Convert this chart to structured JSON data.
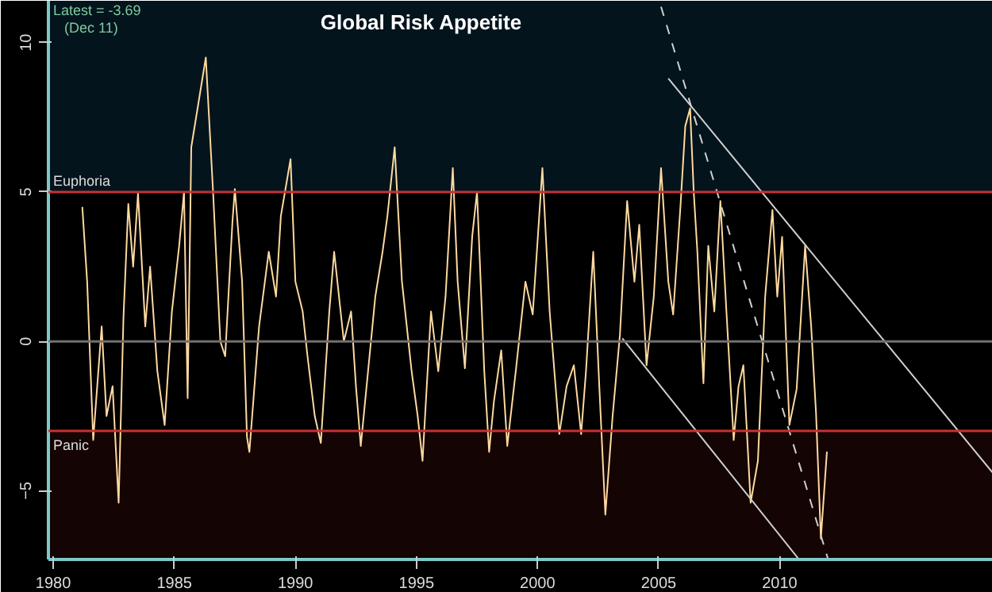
{
  "chart_data": {
    "type": "line",
    "title": "Global Risk Appetite",
    "annotations": [
      "Latest = -3.69",
      "(Dec 11)"
    ],
    "xlim": [
      1979.8,
      2018.8
    ],
    "xticks": [
      1980,
      1985,
      1990,
      1995,
      2000,
      2005,
      2010
    ],
    "ylim": [
      -7.3,
      11.4
    ],
    "yticks": [
      -5,
      0,
      5,
      10
    ],
    "grid": false,
    "line_style": "solid",
    "marker": "none",
    "ref_lines": [
      {
        "axis": "y",
        "value": 5,
        "label": "Euphoria",
        "color": "#c83232"
      },
      {
        "axis": "y",
        "value": -3,
        "label": "Panic",
        "color": "#c83232"
      },
      {
        "axis": "y",
        "value": 0,
        "label": null,
        "color": "#707070"
      }
    ],
    "bands": [
      {
        "axis": "y",
        "from": 5,
        "to": 11.4,
        "label": null,
        "color": "#04141c"
      },
      {
        "axis": "y",
        "from": -7.3,
        "to": -3,
        "label": null,
        "color": "#140404"
      }
    ],
    "series": [
      {
        "color": "#ffd9a0",
        "x": [
          1981.2,
          1981.4,
          1981.65,
          1982.0,
          1982.2,
          1982.45,
          1982.7,
          1982.9,
          1983.1,
          1983.3,
          1983.5,
          1983.8,
          1984.0,
          1984.3,
          1984.6,
          1984.9,
          1985.2,
          1985.4,
          1985.55,
          1985.7,
          1986.0,
          1986.3,
          1986.6,
          1986.9,
          1987.1,
          1987.4,
          1987.5,
          1987.8,
          1988.0,
          1988.1,
          1988.5,
          1988.9,
          1989.2,
          1989.4,
          1989.8,
          1990.0,
          1990.3,
          1990.5,
          1990.8,
          1991.05,
          1991.4,
          1991.6,
          1992.0,
          1992.3,
          1992.5,
          1992.7,
          1993.0,
          1993.3,
          1993.6,
          1993.8,
          1994.1,
          1994.4,
          1994.8,
          1995.05,
          1995.25,
          1995.6,
          1995.9,
          1996.2,
          1996.5,
          1996.7,
          1997.0,
          1997.3,
          1997.5,
          1997.8,
          1998.0,
          1998.2,
          1998.5,
          1998.75,
          1999.1,
          1999.5,
          1999.8,
          2000.2,
          2000.5,
          2000.9,
          2001.2,
          2001.5,
          2001.8,
          2002.0,
          2002.3,
          2002.55,
          2002.8,
          2003.1,
          2003.4,
          2003.7,
          2004.0,
          2004.2,
          2004.5,
          2004.8,
          2005.1,
          2005.4,
          2005.6,
          2005.9,
          2006.1,
          2006.3,
          2006.45,
          2006.6,
          2006.85,
          2007.05,
          2007.3,
          2007.55,
          2007.8,
          2008.1,
          2008.3,
          2008.5,
          2008.8,
          2009.1,
          2009.4,
          2009.7,
          2009.9,
          2010.1,
          2010.4,
          2010.7,
          2011.05,
          2011.3,
          2011.5,
          2011.7,
          2011.95
        ],
        "values": [
          4.5,
          2.0,
          -3.3,
          0.5,
          -2.5,
          -1.5,
          -5.4,
          0.8,
          4.6,
          2.5,
          4.95,
          0.5,
          2.5,
          -1.0,
          -2.8,
          1.0,
          3.2,
          5.0,
          -1.9,
          6.5,
          8.0,
          9.5,
          5.0,
          0.0,
          -0.5,
          4.0,
          5.1,
          2.0,
          -3.2,
          -3.7,
          0.5,
          3.0,
          1.5,
          4.2,
          6.1,
          2.0,
          1.0,
          -0.5,
          -2.5,
          -3.4,
          1.0,
          3.0,
          0.0,
          1.0,
          -1.5,
          -3.5,
          -1.0,
          1.5,
          3.0,
          4.2,
          6.5,
          2.0,
          -1.0,
          -2.5,
          -4.0,
          1.0,
          -1.0,
          1.5,
          5.8,
          2.0,
          -0.9,
          3.5,
          5.0,
          -1.0,
          -3.7,
          -2.0,
          -0.3,
          -3.5,
          -1.0,
          2.0,
          0.9,
          5.8,
          1.0,
          -3.1,
          -1.5,
          -0.8,
          -3.1,
          -1.0,
          3.0,
          -1.5,
          -5.8,
          -2.5,
          0.2,
          4.7,
          2.0,
          3.9,
          -0.8,
          1.5,
          5.8,
          2.0,
          0.9,
          4.5,
          7.2,
          7.8,
          5.0,
          3.0,
          -1.4,
          3.2,
          1.0,
          4.7,
          1.0,
          -3.3,
          -1.5,
          -0.8,
          -5.4,
          -4.0,
          1.5,
          4.4,
          1.5,
          3.5,
          -2.8,
          -1.6,
          3.2,
          0.5,
          -2.4,
          -6.6,
          -3.69
        ]
      },
      {
        "type": "line",
        "color": "#d0d0d0",
        "line_style": "solid",
        "x": [
          2005.4,
          2018.8
        ],
        "values": [
          8.8,
          -4.4
        ]
      },
      {
        "type": "line",
        "color": "#d0d0d0",
        "line_style": "solid",
        "x": [
          2003.5,
          2010.8
        ],
        "values": [
          0.1,
          -7.3
        ]
      },
      {
        "type": "line",
        "color": "#d0d0d0",
        "line_style": "dashed",
        "x": [
          2005.1,
          2012.0
        ],
        "values": [
          11.2,
          -7.3
        ]
      }
    ]
  }
}
